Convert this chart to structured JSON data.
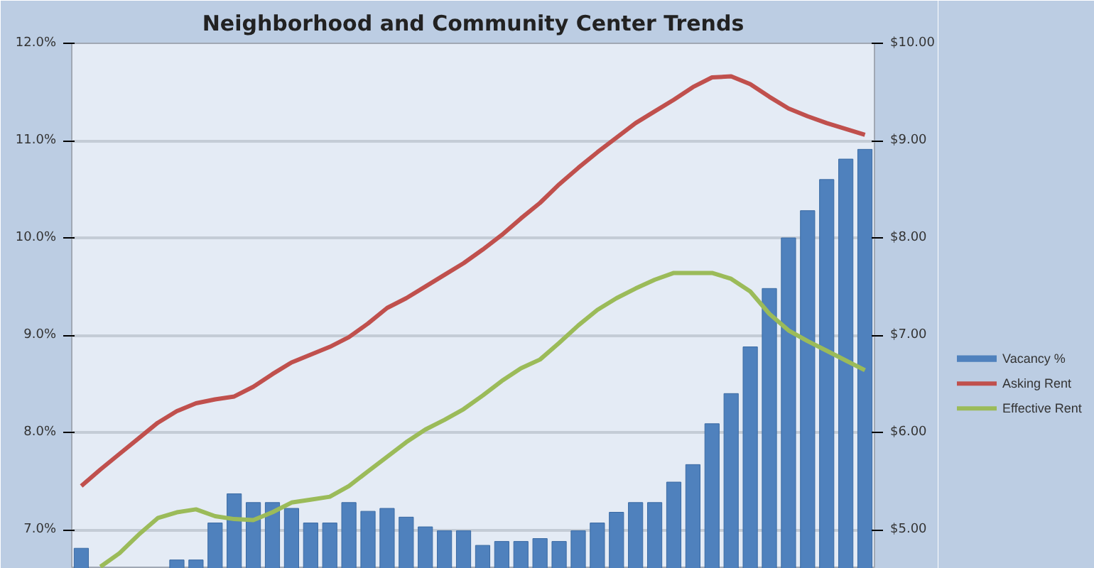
{
  "chart_data": {
    "type": "bar",
    "title": "Neighborhood and Community Center Trends",
    "categories": [
      null,
      null,
      null,
      null,
      null,
      null,
      null,
      null,
      null,
      null,
      null,
      null,
      null,
      null,
      null,
      null,
      null,
      null,
      null,
      null,
      null,
      null,
      null,
      null,
      null,
      null,
      null,
      null,
      null,
      null,
      null,
      null,
      null,
      null,
      null,
      null,
      null,
      null,
      null,
      null,
      null,
      null
    ],
    "series": [
      {
        "name": "Vacancy %",
        "type": "bar",
        "color": "#4f81bd",
        "values": [
          6.81,
          null,
          null,
          null,
          null,
          6.69,
          6.69,
          7.07,
          7.37,
          7.28,
          7.28,
          7.22,
          7.07,
          7.07,
          7.28,
          7.19,
          7.22,
          7.13,
          7.03,
          6.99,
          6.99,
          6.84,
          6.88,
          6.88,
          6.91,
          6.88,
          6.99,
          7.07,
          7.18,
          7.28,
          7.28,
          7.49,
          7.67,
          8.09,
          8.4,
          8.88,
          9.48,
          10.0,
          10.28,
          10.6,
          10.81,
          10.91
        ]
      },
      {
        "name": "Asking Rent",
        "type": "line",
        "axis": "y2",
        "color": "#c0504d",
        "values": [
          5.45,
          5.62,
          5.78,
          5.94,
          6.1,
          6.22,
          6.3,
          6.34,
          6.37,
          6.47,
          6.6,
          6.72,
          6.8,
          6.88,
          6.98,
          7.12,
          7.28,
          7.38,
          7.5,
          7.62,
          7.74,
          7.88,
          8.03,
          8.2,
          8.36,
          8.55,
          8.72,
          8.88,
          9.03,
          9.18,
          9.3,
          9.42,
          9.55,
          9.65,
          9.66,
          9.58,
          9.45,
          9.33,
          9.25,
          9.18,
          9.12,
          9.06
        ]
      },
      {
        "name": "Effective Rent",
        "type": "line",
        "axis": "y2",
        "color": "#9bbb59",
        "values": [
          null,
          4.62,
          4.76,
          4.95,
          5.12,
          5.18,
          5.21,
          5.14,
          5.11,
          5.1,
          5.18,
          5.28,
          5.31,
          5.34,
          5.45,
          5.6,
          5.75,
          5.9,
          6.03,
          6.13,
          6.24,
          6.38,
          6.53,
          6.66,
          6.75,
          6.92,
          7.1,
          7.26,
          7.38,
          7.48,
          7.57,
          7.64,
          7.64,
          7.64,
          7.58,
          7.45,
          7.22,
          7.05,
          6.94,
          6.84,
          6.74,
          6.64
        ]
      }
    ],
    "ylim": [
      6.6,
      12.0
    ],
    "yticks": [
      {
        "value": 7,
        "label": "7.0%"
      },
      {
        "value": 8,
        "label": "8.0%"
      },
      {
        "value": 9,
        "label": "9.0%"
      },
      {
        "value": 10,
        "label": "10.0%"
      },
      {
        "value": 11,
        "label": "11.0%"
      },
      {
        "value": 12,
        "label": "12.0%"
      }
    ],
    "y2lim": [
      4.6,
      10.0
    ],
    "y2ticks": [
      {
        "value": 5,
        "label": "$5.00"
      },
      {
        "value": 6,
        "label": "$6.00"
      },
      {
        "value": 7,
        "label": "$7.00"
      },
      {
        "value": 8,
        "label": "$8.00"
      },
      {
        "value": 9,
        "label": "$9.00"
      },
      {
        "value": 10,
        "label": "$10.00"
      }
    ],
    "grid": "y",
    "legend": "right",
    "tick_labels": "y"
  }
}
